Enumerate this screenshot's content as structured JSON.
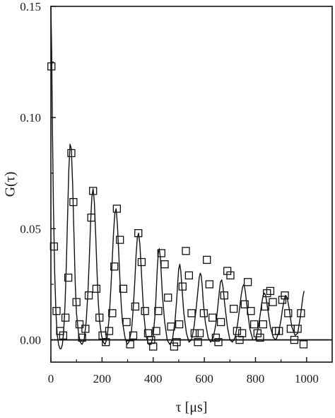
{
  "chart_data": {
    "type": "scatter",
    "title": "",
    "xlabel": "τ [μs]",
    "ylabel": "G(τ)",
    "xlim": [
      0,
      1100
    ],
    "ylim": [
      -0.01,
      0.15
    ],
    "x_ticks": [
      0,
      200,
      400,
      600,
      800,
      1000
    ],
    "y_ticks": [
      0.0,
      0.05,
      0.1,
      0.15
    ],
    "x_tick_labels": [
      "0",
      "200",
      "400",
      "600",
      "800",
      "1000"
    ],
    "y_tick_labels": [
      "0.00",
      "0.05",
      "0.10",
      "0.15"
    ],
    "grid": false,
    "zero_line": true,
    "series": [
      {
        "kind": "markers",
        "marker": "open-square",
        "x": [
          2,
          12,
          22,
          36,
          48,
          57,
          68,
          80,
          88,
          100,
          112,
          122,
          135,
          148,
          158,
          165,
          178,
          190,
          202,
          215,
          228,
          240,
          248,
          258,
          270,
          283,
          296,
          310,
          322,
          330,
          342,
          355,
          368,
          380,
          392,
          400,
          412,
          420,
          432,
          445,
          458,
          470,
          482,
          492,
          502,
          515,
          528,
          540,
          550,
          562,
          575,
          582,
          598,
          610,
          620,
          632,
          645,
          655,
          665,
          678,
          690,
          702,
          715,
          728,
          738,
          748,
          758,
          770,
          782,
          795,
          808,
          818,
          830,
          838,
          845,
          858,
          868,
          880,
          892,
          905,
          915,
          928,
          938,
          952,
          965,
          978,
          988
        ],
        "y": [
          0.123,
          0.042,
          0.013,
          0.004,
          0.002,
          0.01,
          0.028,
          0.084,
          0.062,
          0.017,
          0.007,
          0.001,
          0.005,
          0.02,
          0.055,
          0.067,
          0.023,
          0.01,
          0.002,
          -0.001,
          0.004,
          0.012,
          0.033,
          0.059,
          0.045,
          0.023,
          0.008,
          -0.002,
          0.002,
          0.015,
          0.048,
          0.035,
          0.013,
          0.003,
          0.0,
          -0.003,
          0.004,
          0.013,
          0.039,
          0.034,
          0.019,
          0.006,
          -0.003,
          -0.001,
          0.007,
          0.024,
          0.04,
          0.029,
          0.012,
          0.003,
          -0.001,
          0.003,
          0.012,
          0.036,
          0.025,
          0.01,
          0.001,
          -0.001,
          0.008,
          0.02,
          0.031,
          0.029,
          0.014,
          0.004,
          0.0,
          0.003,
          0.016,
          0.026,
          0.013,
          0.007,
          0.003,
          0.001,
          0.007,
          0.015,
          0.021,
          0.022,
          0.017,
          0.004,
          0.004,
          0.018,
          0.02,
          0.012,
          0.005,
          0.0,
          0.005,
          0.012,
          -0.002
        ]
      },
      {
        "kind": "fit-line",
        "x": [
          0,
          3,
          6,
          10,
          15,
          20,
          25,
          30,
          35,
          40,
          45,
          50,
          55,
          60,
          65,
          70,
          75,
          80,
          85,
          90,
          95,
          100,
          108,
          115,
          122,
          130,
          138,
          145,
          150,
          155,
          160,
          165,
          170,
          175,
          180,
          185,
          190,
          198,
          205,
          212,
          220,
          228,
          235,
          240,
          245,
          250,
          255,
          260,
          265,
          270,
          275,
          280,
          290,
          298,
          305,
          315,
          322,
          328,
          333,
          338,
          343,
          348,
          353,
          358,
          363,
          372,
          382,
          392,
          400,
          408,
          412,
          416,
          420,
          424,
          428,
          432,
          436,
          445,
          455,
          465,
          475,
          485,
          492,
          496,
          500,
          504,
          508,
          512,
          520,
          530,
          540,
          550,
          560,
          568,
          575,
          580,
          584,
          588,
          592,
          596,
          604,
          615,
          625,
          635,
          645,
          652,
          658,
          663,
          668,
          673,
          680,
          690,
          700,
          710,
          720,
          730,
          738,
          744,
          750,
          755,
          760,
          768,
          778,
          790,
          800,
          810,
          818,
          824,
          830,
          835,
          840,
          848,
          858,
          870,
          880,
          890,
          900,
          906,
          912,
          918,
          924,
          932,
          942,
          955,
          965,
          975,
          985,
          990
        ],
        "y": [
          0.15,
          0.13,
          0.095,
          0.06,
          0.03,
          0.012,
          0.002,
          -0.002,
          -0.004,
          -0.004,
          -0.002,
          0.004,
          0.015,
          0.032,
          0.054,
          0.076,
          0.088,
          0.086,
          0.07,
          0.048,
          0.026,
          0.012,
          0.003,
          -0.001,
          -0.002,
          0.0,
          0.008,
          0.022,
          0.036,
          0.052,
          0.064,
          0.068,
          0.062,
          0.048,
          0.032,
          0.018,
          0.009,
          0.002,
          -0.001,
          -0.002,
          0.001,
          0.01,
          0.024,
          0.036,
          0.048,
          0.057,
          0.059,
          0.052,
          0.04,
          0.027,
          0.016,
          0.008,
          0.001,
          -0.002,
          -0.001,
          0.004,
          0.014,
          0.026,
          0.038,
          0.046,
          0.048,
          0.043,
          0.033,
          0.022,
          0.012,
          0.002,
          -0.002,
          -0.002,
          0.002,
          0.012,
          0.022,
          0.032,
          0.039,
          0.041,
          0.037,
          0.029,
          0.02,
          0.008,
          0.0,
          -0.002,
          0.0,
          0.008,
          0.018,
          0.026,
          0.032,
          0.034,
          0.031,
          0.024,
          0.012,
          0.003,
          -0.001,
          0.0,
          0.006,
          0.014,
          0.022,
          0.028,
          0.03,
          0.029,
          0.024,
          0.017,
          0.008,
          0.001,
          -0.001,
          0.001,
          0.007,
          0.014,
          0.021,
          0.026,
          0.027,
          0.024,
          0.016,
          0.006,
          0.0,
          -0.001,
          0.001,
          0.007,
          0.014,
          0.02,
          0.024,
          0.025,
          0.022,
          0.014,
          0.005,
          0.0,
          0.0,
          0.005,
          0.011,
          0.016,
          0.02,
          0.021,
          0.02,
          0.014,
          0.006,
          0.001,
          0.0,
          0.003,
          0.009,
          0.014,
          0.018,
          0.02,
          0.019,
          0.014,
          0.006,
          0.002,
          0.003,
          0.01,
          0.019,
          0.022
        ]
      }
    ]
  }
}
